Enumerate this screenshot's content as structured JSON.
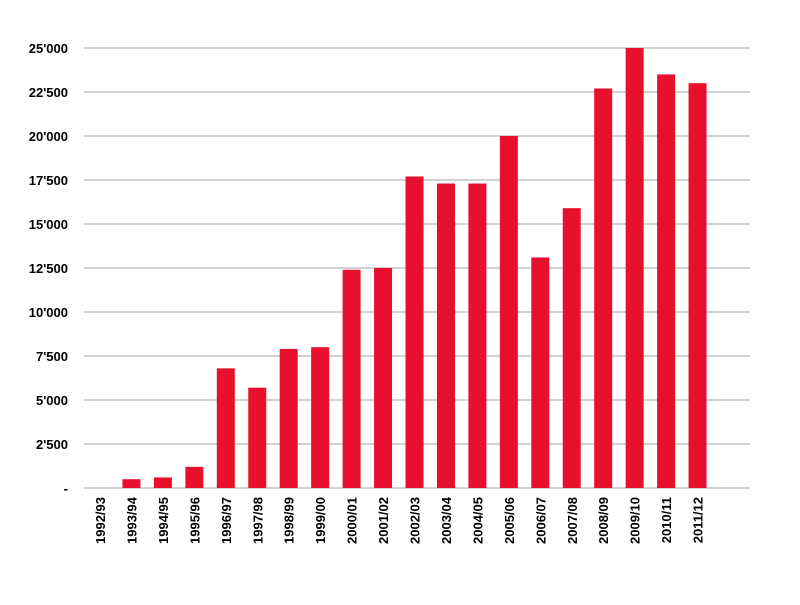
{
  "chart_data": {
    "type": "bar",
    "categories": [
      "1992/93",
      "1993/94",
      "1994/95",
      "1995/96",
      "1996/97",
      "1997/98",
      "1998/99",
      "1999/00",
      "2000/01",
      "2001/02",
      "2002/03",
      "2003/04",
      "2004/05",
      "2005/06",
      "2006/07",
      "2007/08",
      "2008/09",
      "2009/10",
      "2010/11",
      "2011/12"
    ],
    "values": [
      0,
      500,
      600,
      1200,
      6800,
      5700,
      7900,
      8000,
      12400,
      12500,
      17700,
      17300,
      17300,
      20000,
      13100,
      15900,
      22700,
      25000,
      23500,
      23000
    ],
    "title": "",
    "xlabel": "",
    "ylabel": "",
    "ylim": [
      0,
      25000
    ],
    "y_ticks": [
      0,
      2500,
      5000,
      7500,
      10000,
      12500,
      15000,
      17500,
      20000,
      22500,
      25000
    ],
    "y_tick_labels": [
      "-",
      "2'500",
      "5'000",
      "7'500",
      "10'000",
      "12'500",
      "15'000",
      "17'500",
      "20'000",
      "22'500",
      "25'000"
    ],
    "grid": true,
    "legend": "none",
    "bar_color": "#e8112d",
    "grid_color": "#a6a6a6"
  }
}
